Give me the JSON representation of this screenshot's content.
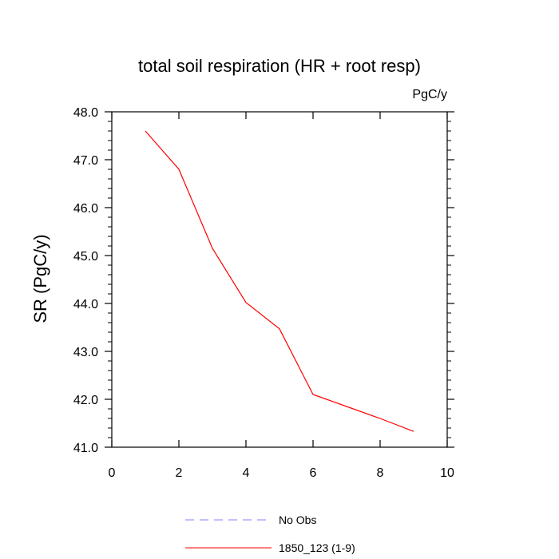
{
  "chart_data": {
    "type": "line",
    "title": "total soil respiration (HR + root resp)",
    "units_label": "PgC/y",
    "xlabel": "",
    "ylabel": "SR  (PgC/y)",
    "xlim": [
      0,
      10
    ],
    "ylim": [
      41.0,
      48.0
    ],
    "x_ticks": [
      0,
      2,
      4,
      6,
      8,
      10
    ],
    "x_tick_labels": [
      "0",
      "2",
      "4",
      "6",
      "8",
      "10"
    ],
    "y_ticks": [
      41.0,
      42.0,
      43.0,
      44.0,
      45.0,
      46.0,
      47.0,
      48.0
    ],
    "y_tick_labels": [
      "41.0",
      "42.0",
      "43.0",
      "44.0",
      "45.0",
      "46.0",
      "47.0",
      "48.0"
    ],
    "series": [
      {
        "name": "1850_123 (1-9)",
        "color": "#ff0000",
        "style": "solid",
        "x": [
          1,
          2,
          3,
          4,
          5,
          6,
          7,
          8,
          9
        ],
        "y": [
          47.6,
          46.8,
          45.15,
          44.02,
          43.47,
          42.1,
          41.85,
          41.6,
          41.33
        ]
      }
    ],
    "legend": [
      {
        "label": "No Obs",
        "color": "#8080ff",
        "style": "dashed"
      },
      {
        "label": "1850_123 (1-9)",
        "color": "#ff0000",
        "style": "solid"
      }
    ]
  }
}
